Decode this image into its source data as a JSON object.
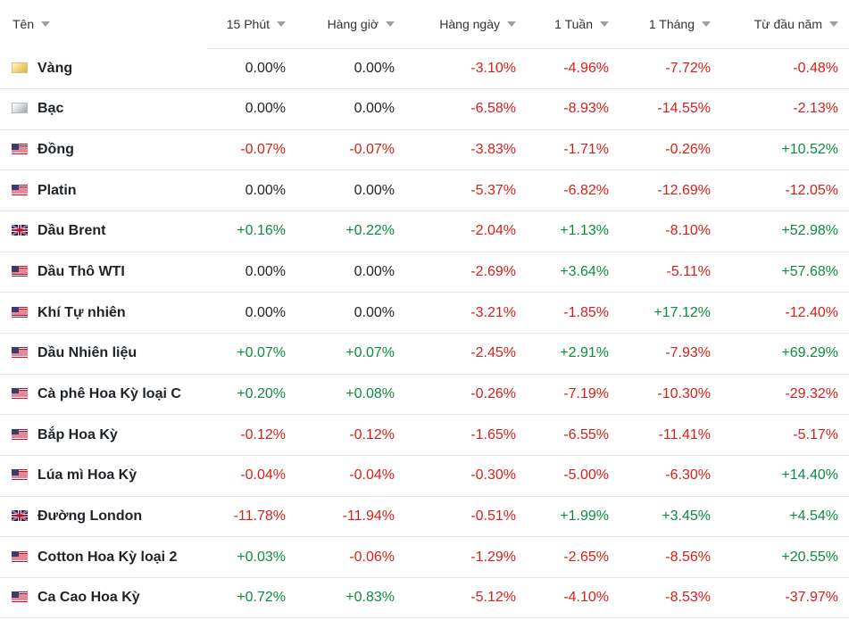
{
  "colors": {
    "negative": "#d91e18",
    "positive": "#0e8a3e",
    "neutral": "#1e2328"
  },
  "header": {
    "columns": [
      {
        "key": "name",
        "label": "Tên"
      },
      {
        "key": "m15",
        "label": "15 Phút"
      },
      {
        "key": "hour",
        "label": "Hàng giờ"
      },
      {
        "key": "day",
        "label": "Hàng ngày"
      },
      {
        "key": "week",
        "label": "1 Tuần"
      },
      {
        "key": "month",
        "label": "1 Tháng"
      },
      {
        "key": "ytd",
        "label": "Từ đầu năm"
      }
    ]
  },
  "rows": [
    {
      "name": "Vàng",
      "flag": "gold-bar-icon",
      "values": [
        "0.00%",
        "0.00%",
        "-3.10%",
        "-4.96%",
        "-7.72%",
        "-0.48%"
      ]
    },
    {
      "name": "Bạc",
      "flag": "silver-bar-icon",
      "values": [
        "0.00%",
        "0.00%",
        "-6.58%",
        "-8.93%",
        "-14.55%",
        "-2.13%"
      ]
    },
    {
      "name": "Đồng",
      "flag": "us-flag-icon",
      "values": [
        "-0.07%",
        "-0.07%",
        "-3.83%",
        "-1.71%",
        "-0.26%",
        "+10.52%"
      ]
    },
    {
      "name": "Platin",
      "flag": "us-flag-icon",
      "values": [
        "0.00%",
        "0.00%",
        "-5.37%",
        "-6.82%",
        "-12.69%",
        "-12.05%"
      ]
    },
    {
      "name": "Dầu Brent",
      "flag": "uk-flag-icon",
      "values": [
        "+0.16%",
        "+0.22%",
        "-2.04%",
        "+1.13%",
        "-8.10%",
        "+52.98%"
      ]
    },
    {
      "name": "Dầu Thô WTI",
      "flag": "us-flag-icon",
      "values": [
        "0.00%",
        "0.00%",
        "-2.69%",
        "+3.64%",
        "-5.11%",
        "+57.68%"
      ]
    },
    {
      "name": "Khí Tự nhiên",
      "flag": "us-flag-icon",
      "values": [
        "0.00%",
        "0.00%",
        "-3.21%",
        "-1.85%",
        "+17.12%",
        "-12.40%"
      ]
    },
    {
      "name": "Dầu Nhiên liệu",
      "flag": "us-flag-icon",
      "values": [
        "+0.07%",
        "+0.07%",
        "-2.45%",
        "+2.91%",
        "-7.93%",
        "+69.29%"
      ]
    },
    {
      "name": "Cà phê Hoa Kỳ loại C",
      "flag": "us-flag-icon",
      "values": [
        "+0.20%",
        "+0.08%",
        "-0.26%",
        "-7.19%",
        "-10.30%",
        "-29.32%"
      ]
    },
    {
      "name": "Bắp Hoa Kỳ",
      "flag": "us-flag-icon",
      "values": [
        "-0.12%",
        "-0.12%",
        "-1.65%",
        "-6.55%",
        "-11.41%",
        "-5.17%"
      ]
    },
    {
      "name": "Lúa mì Hoa Kỳ",
      "flag": "us-flag-icon",
      "values": [
        "-0.04%",
        "-0.04%",
        "-0.30%",
        "-5.00%",
        "-6.30%",
        "+14.40%"
      ]
    },
    {
      "name": "Đường London",
      "flag": "uk-flag-icon",
      "values": [
        "-11.78%",
        "-11.94%",
        "-0.51%",
        "+1.99%",
        "+3.45%",
        "+4.54%"
      ]
    },
    {
      "name": "Cotton Hoa Kỳ loại 2",
      "flag": "us-flag-icon",
      "values": [
        "+0.03%",
        "-0.06%",
        "-1.29%",
        "-2.65%",
        "-8.56%",
        "+20.55%"
      ]
    },
    {
      "name": "Ca Cao Hoa Kỳ",
      "flag": "us-flag-icon",
      "values": [
        "+0.72%",
        "+0.83%",
        "-5.12%",
        "-4.10%",
        "-8.53%",
        "-37.97%"
      ]
    }
  ]
}
